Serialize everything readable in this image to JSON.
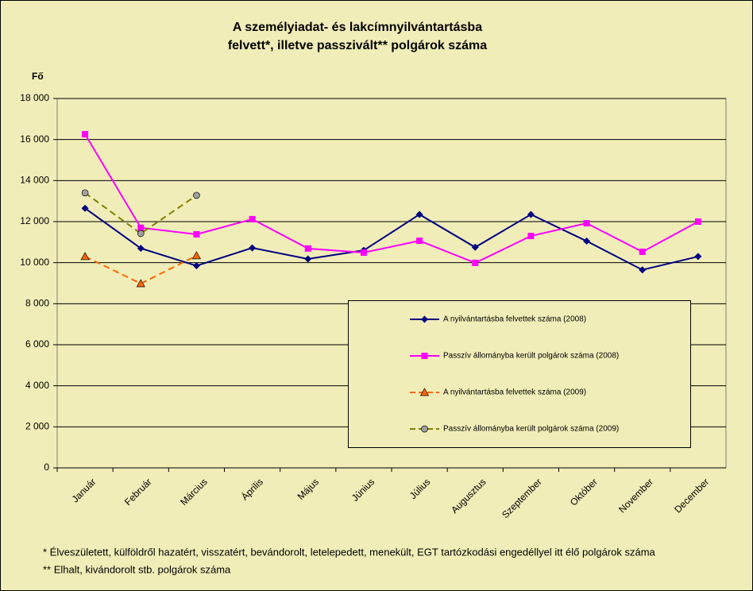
{
  "chart_data": {
    "type": "line",
    "title": [
      "A személyiadat- és lakcímnyilvántartásba",
      "felvett*, illetve passzivált** polgárok száma"
    ],
    "y_label": "Fő",
    "categories": [
      "Január",
      "Február",
      "Március",
      "Április",
      "Május",
      "Június",
      "Július",
      "Augusztus",
      "Szeptember",
      "Október",
      "November",
      "December"
    ],
    "series": [
      {
        "name": "A nyilvántartásba felvettek száma (2008)",
        "color": "#000080",
        "marker": "diamond",
        "dashed": false,
        "values": [
          12650,
          10700,
          9850,
          10720,
          10180,
          10600,
          12350,
          10750,
          12350,
          11050,
          9650,
          10300
        ]
      },
      {
        "name": "Passzív állományba került polgárok száma (2008)",
        "color": "#ff00ff",
        "marker": "square",
        "dashed": false,
        "values": [
          16260,
          11700,
          11380,
          12120,
          10690,
          10490,
          11070,
          9990,
          11300,
          11920,
          10530,
          12000
        ]
      },
      {
        "name": "A nyilvántartásba felvettek száma (2009)",
        "color": "#ff6600",
        "marker": "triangle",
        "dashed": true,
        "values": [
          10300,
          8980,
          10340,
          null,
          null,
          null,
          null,
          null,
          null,
          null,
          null,
          null
        ]
      },
      {
        "name": "Passzív állományba került polgárok száma (2009)",
        "color": "#808000",
        "marker": "circle",
        "dashed": true,
        "values": [
          13400,
          11420,
          13280,
          null,
          null,
          null,
          null,
          null,
          null,
          null,
          null,
          null
        ]
      }
    ],
    "ylim": [
      0,
      18000
    ],
    "yticks": [
      0,
      {
        "value": 2000,
        "label": "2 000"
      },
      {
        "value": 4000,
        "label": "4 000"
      },
      {
        "value": 6000,
        "label": "6 000"
      },
      {
        "value": 8000,
        "label": "8 000"
      },
      {
        "value": 10000,
        "label": "10 000"
      },
      {
        "value": 12000,
        "label": "12 000"
      },
      {
        "value": 14000,
        "label": "14 000"
      },
      {
        "value": 16000,
        "label": "16 000"
      },
      {
        "value": 18000,
        "label": "18 000"
      }
    ],
    "grid": true,
    "footnotes": [
      "* Élveszületett, külföldről hazatért, visszatért, bevándorolt, letelepedett, menekült, EGT tartózkodási engedéllyel itt élő polgárok száma",
      "** Elhalt, kivándorolt stb. polgárok száma"
    ]
  }
}
